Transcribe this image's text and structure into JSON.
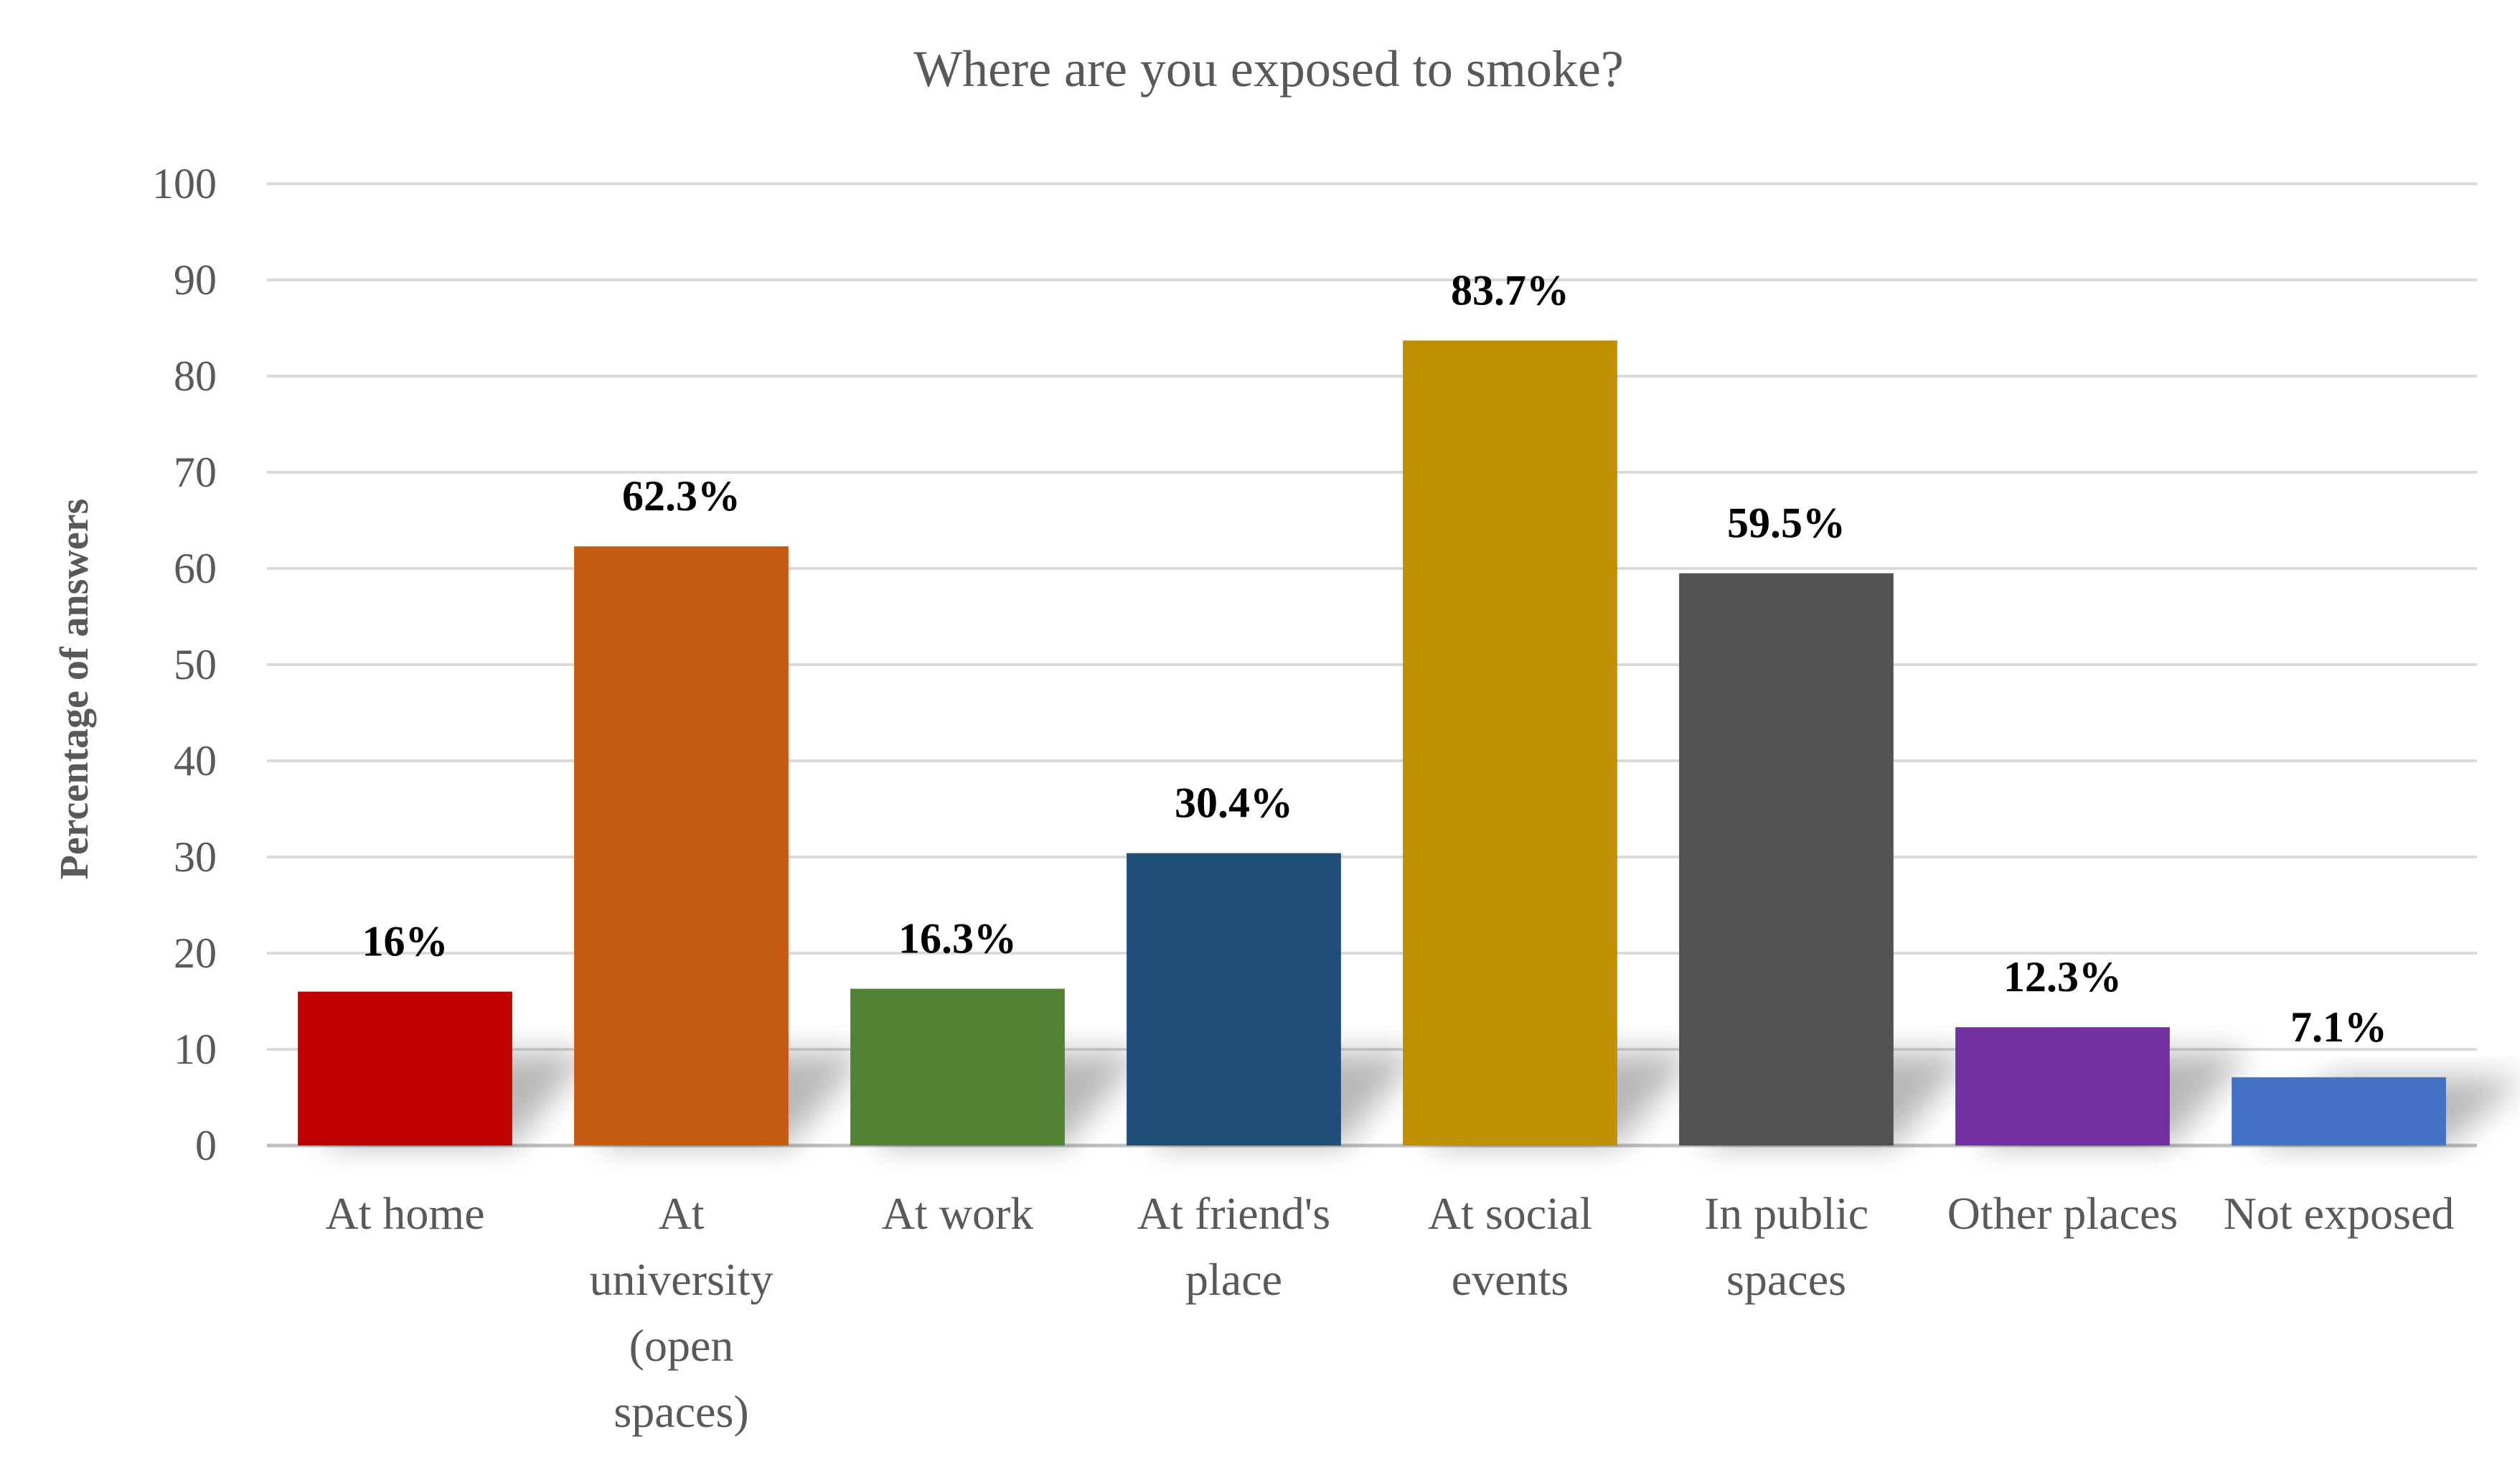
{
  "chart_data": {
    "type": "bar",
    "title": "Where are you exposed to smoke?",
    "xlabel": "",
    "ylabel": "Percentage of answers",
    "ylim": [
      0,
      100
    ],
    "yticks": [
      0,
      10,
      20,
      30,
      40,
      50,
      60,
      70,
      80,
      90,
      100
    ],
    "grid": true,
    "legend": "none",
    "categories": [
      "At home",
      "At university (open spaces)",
      "At work",
      "At friend's place",
      "At social events",
      "In public spaces",
      "Other places",
      "Not exposed"
    ],
    "category_lines": [
      [
        "At home"
      ],
      [
        "At",
        "university",
        "(open",
        "spaces)"
      ],
      [
        "At work"
      ],
      [
        "At friend's",
        "place"
      ],
      [
        "At social",
        "events"
      ],
      [
        "In public",
        "spaces"
      ],
      [
        "Other places"
      ],
      [
        "Not exposed"
      ]
    ],
    "values": [
      16,
      62.3,
      16.3,
      30.4,
      83.7,
      59.5,
      12.3,
      7.1
    ],
    "data_labels": [
      "16%",
      "62.3%",
      "16.3%",
      "30.4%",
      "83.7%",
      "59.5%",
      "12.3%",
      "7.1%"
    ],
    "colors": [
      "#C00000",
      "#C55A11",
      "#548235",
      "#1F4E79",
      "#BF9000",
      "#525252",
      "#7030A0",
      "#4472C4"
    ]
  }
}
